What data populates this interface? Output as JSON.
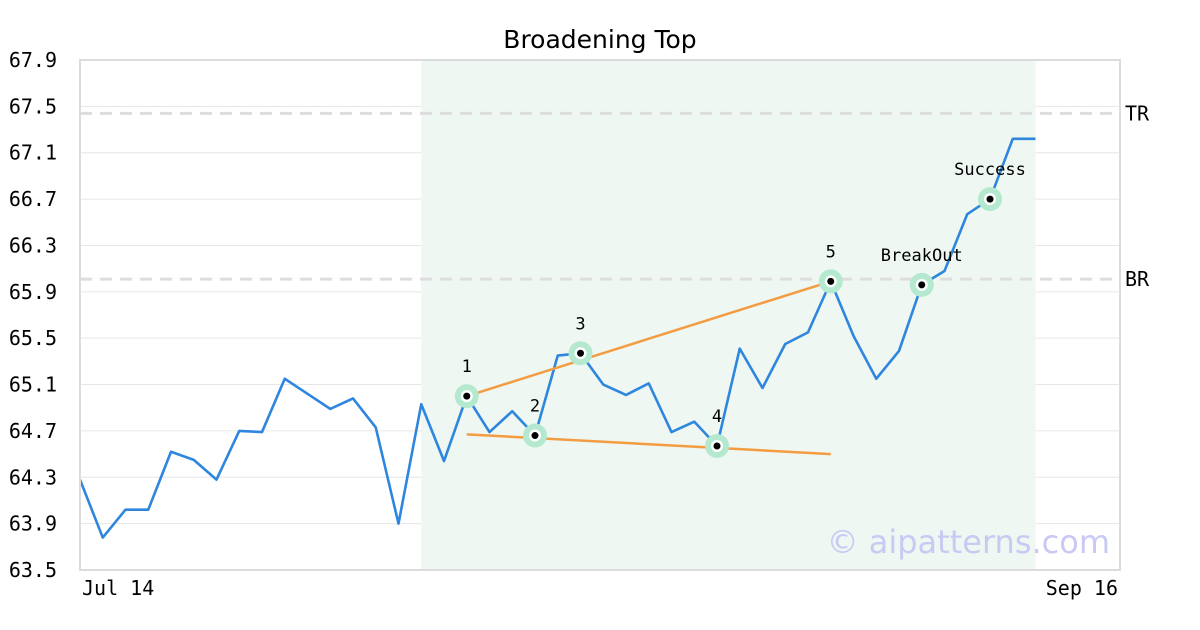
{
  "chart_data": {
    "type": "line",
    "title": "Broadening Top",
    "watermark": "© aipatterns.com",
    "x_tick_labels": [
      "Jul 14",
      "Sep 16"
    ],
    "y_ticks": [
      "63.5",
      "63.9",
      "64.3",
      "64.7",
      "65.1",
      "65.5",
      "65.9",
      "66.3",
      "66.7",
      "67.1",
      "67.5",
      "67.9"
    ],
    "ylim": [
      63.5,
      67.9
    ],
    "x_count": 42,
    "grid": true,
    "series": [
      {
        "color": "#2e86de",
        "values": [
          64.28,
          63.78,
          64.02,
          64.02,
          64.52,
          64.45,
          64.28,
          64.7,
          64.69,
          65.15,
          65.02,
          64.89,
          64.98,
          64.73,
          63.9,
          64.93,
          64.44,
          65.0,
          64.69,
          64.87,
          64.66,
          65.35,
          65.37,
          65.1,
          65.01,
          65.11,
          64.69,
          64.78,
          64.57,
          65.41,
          65.07,
          65.45,
          65.55,
          65.99,
          65.52,
          65.15,
          65.39,
          65.96,
          66.08,
          66.57,
          66.7,
          67.22,
          67.22
        ]
      }
    ],
    "highlight_region": {
      "x_start": 15,
      "x_end": 42,
      "color": "#eef7f2"
    },
    "reference_lines": [
      {
        "label": "TR",
        "y": 67.44,
        "color": "#dddddd"
      },
      {
        "label": "BR",
        "y": 66.01,
        "color": "#dddddd"
      }
    ],
    "trend_lines": [
      {
        "x1": 17,
        "y1": 65.0,
        "x2": 33,
        "y2": 65.99,
        "color": "#f39c42"
      },
      {
        "x1": 17,
        "y1": 64.67,
        "x2": 33,
        "y2": 64.5,
        "color": "#f39c42"
      }
    ],
    "pattern_points": [
      {
        "label": "1",
        "x": 17,
        "y": 65.0,
        "label_pos": "above"
      },
      {
        "label": "2",
        "x": 20,
        "y": 64.66,
        "label_pos": "above"
      },
      {
        "label": "3",
        "x": 22,
        "y": 65.37,
        "label_pos": "above"
      },
      {
        "label": "4",
        "x": 28,
        "y": 64.57,
        "label_pos": "above"
      },
      {
        "label": "5",
        "x": 33,
        "y": 65.99,
        "label_pos": "above"
      },
      {
        "label": "BreakOut",
        "x": 37,
        "y": 65.96,
        "label_pos": "above"
      },
      {
        "label": "Success",
        "x": 40,
        "y": 66.7,
        "label_pos": "above"
      }
    ],
    "marker_color": "#b5e9cf"
  }
}
